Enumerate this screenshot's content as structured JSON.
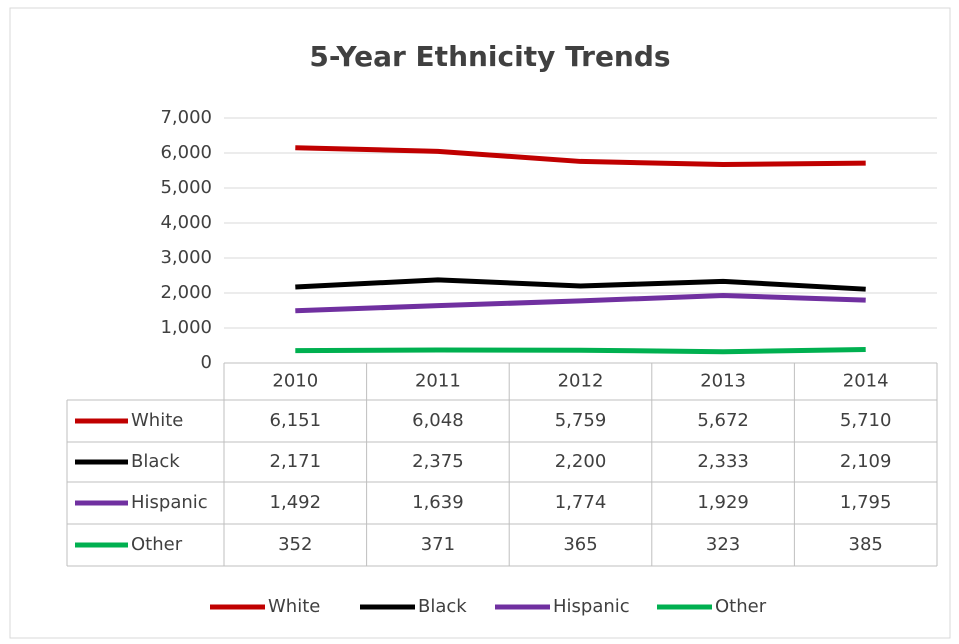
{
  "chart_data": {
    "type": "line",
    "title": "5-Year Ethnicity Trends",
    "categories": [
      "2010",
      "2011",
      "2012",
      "2013",
      "2014"
    ],
    "series": [
      {
        "name": "White",
        "color": "#c00000",
        "values": [
          6151,
          6048,
          5759,
          5672,
          5710
        ],
        "value_labels": [
          "6,151",
          "6,048",
          "5,759",
          "5,672",
          "5,710"
        ]
      },
      {
        "name": "Black",
        "color": "#000000",
        "values": [
          2171,
          2375,
          2200,
          2333,
          2109
        ],
        "value_labels": [
          "2,171",
          "2,375",
          "2,200",
          "2,333",
          "2,109"
        ]
      },
      {
        "name": "Hispanic",
        "color": "#7030a0",
        "values": [
          1492,
          1639,
          1774,
          1929,
          1795
        ],
        "value_labels": [
          "1,492",
          "1,639",
          "1,774",
          "1,929",
          "1,795"
        ]
      },
      {
        "name": "Other",
        "color": "#00b050",
        "values": [
          352,
          371,
          365,
          323,
          385
        ],
        "value_labels": [
          "352",
          "371",
          "365",
          "323",
          "385"
        ]
      }
    ],
    "ylim": [
      0,
      7000
    ],
    "yticks": [
      0,
      {
        "value": 1000,
        "label": "1,000"
      },
      {
        "value": 2000,
        "label": "2,000"
      },
      {
        "value": 3000,
        "label": "3,000"
      },
      {
        "value": 4000,
        "label": "4,000"
      },
      {
        "value": 5000,
        "label": "5,000"
      },
      {
        "value": 6000,
        "label": "6,000"
      },
      {
        "value": 7000,
        "label": "7,000"
      }
    ],
    "grid": true,
    "legend": "bottom"
  }
}
